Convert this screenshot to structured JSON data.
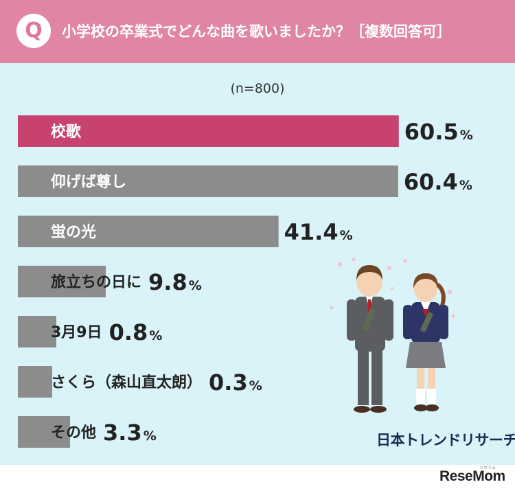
{
  "header": {
    "badge": "Q",
    "question": "小学校の卒業式でどんな曲を歌いましたか？［複数回答可］"
  },
  "sample": "(n=800)",
  "chart_data": {
    "type": "bar",
    "orientation": "horizontal",
    "unit": "%",
    "categories": [
      "校歌",
      "仰げば尊し",
      "蛍の光",
      "旅立ちの日に",
      "3月9日",
      "さくら（森山直太朗）",
      "その他"
    ],
    "values": [
      60.5,
      60.4,
      41.4,
      9.8,
      0.8,
      0.3,
      3.3
    ],
    "highlight_index": 0,
    "colors": {
      "highlight": "#c7426f",
      "default": "#8c8c8c"
    }
  },
  "brand": "日本トレンドリサーチ",
  "watermark": {
    "small": "リセマム",
    "name": "ReseMom"
  }
}
